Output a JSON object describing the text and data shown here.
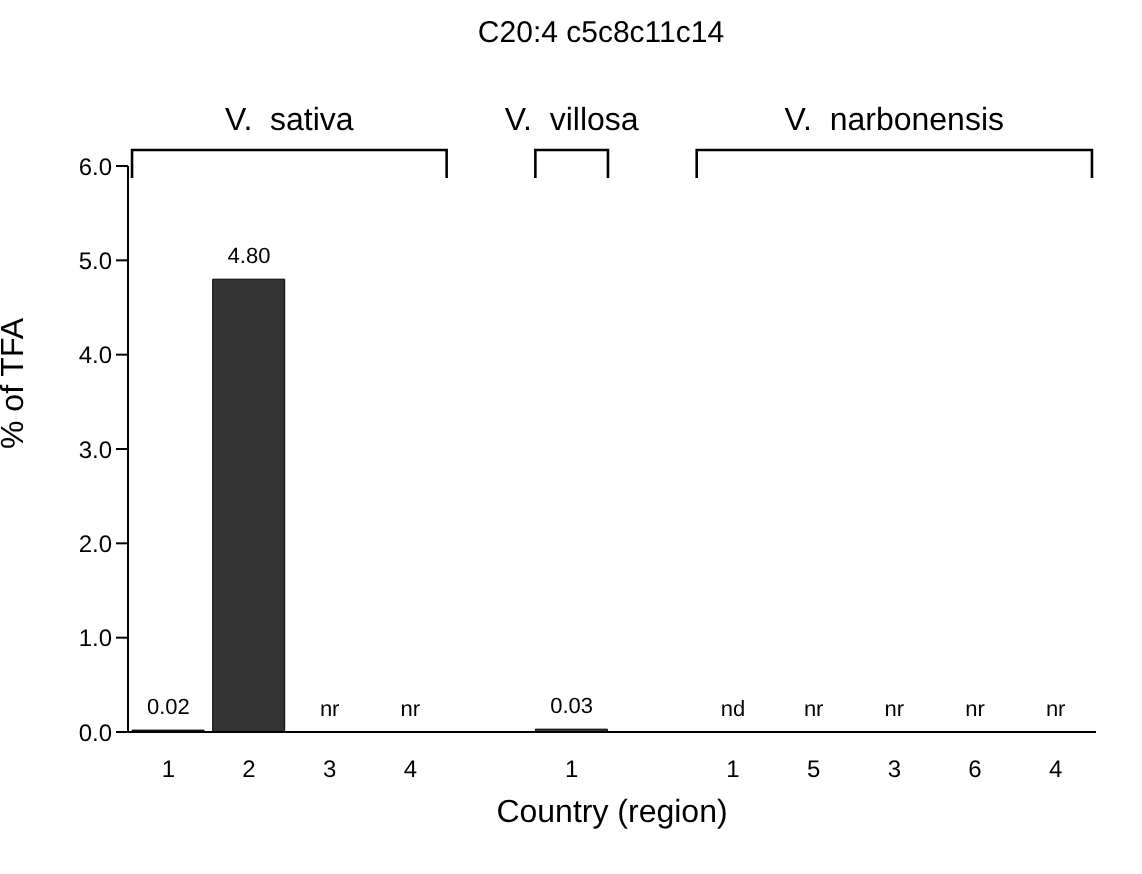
{
  "chart_data": {
    "type": "bar",
    "title": "C20:4 c5c8c11c14",
    "xlabel": "Country (region)",
    "ylabel": "% of TFA",
    "categories": [
      "1",
      "2",
      "3",
      "4",
      null,
      "1",
      null,
      "1",
      "5",
      "3",
      "6",
      "4"
    ],
    "values": [
      0.02,
      4.8,
      null,
      null,
      null,
      0.03,
      null,
      null,
      null,
      null,
      null,
      null
    ],
    "value_labels": [
      "0.02",
      "4.80",
      "nr",
      "nr",
      null,
      "0.03",
      null,
      "nd",
      "nr",
      "nr",
      "nr",
      "nr"
    ],
    "color": "#333333",
    "ylim": [
      0,
      6
    ],
    "yticks": [
      {
        "value": 0,
        "label": "0.0"
      },
      {
        "value": 1,
        "label": "1.0"
      },
      {
        "value": 2,
        "label": "2.0"
      },
      {
        "value": 3,
        "label": "3.0"
      },
      {
        "value": 4,
        "label": "4.0"
      },
      {
        "value": 5,
        "label": "5.0"
      },
      {
        "value": 6,
        "label": "6.0"
      }
    ],
    "annotations": [
      "V.  sativa",
      "V.  villosa",
      "V.  narbonensis"
    ],
    "grid": false,
    "legend": false
  }
}
